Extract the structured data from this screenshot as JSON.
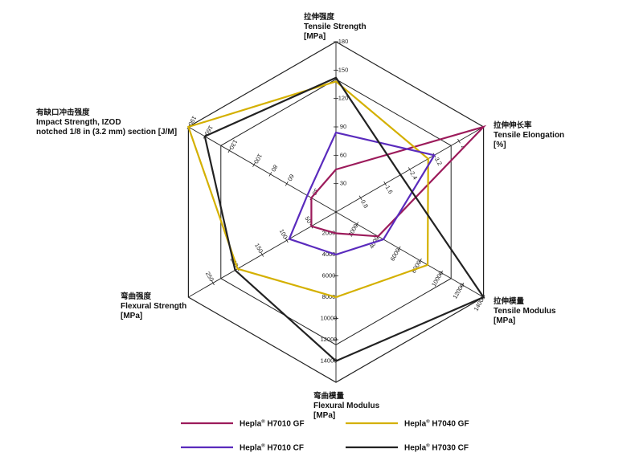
{
  "chart_data": {
    "type": "radar",
    "colors": {
      "Hepla H7010 GF": "#9c1b5b",
      "Hepla H7040 GF": "#d4b000",
      "Hepla H7010 CF": "#5a2bbd",
      "Hepla H7030 CF": "#222222"
    },
    "axes": [
      {
        "key": "tensile_strength",
        "title_cn": "拉伸强度",
        "title_en": [
          "Tensile Strength",
          "[MPa]"
        ],
        "max": 180,
        "ticks": [
          "30",
          "60",
          "90",
          "120",
          "150",
          "180"
        ],
        "tick_values": [
          30,
          60,
          90,
          120,
          150,
          180
        ]
      },
      {
        "key": "tensile_elongation",
        "title_cn": "拉伸伸长率",
        "title_en": [
          "Tensile Elongation",
          "[%]"
        ],
        "max": 4.8,
        "ticks": [
          "0.8",
          "1.6",
          "2.4",
          "3.2",
          "4"
        ],
        "tick_values": [
          0.8,
          1.6,
          2.4,
          3.2,
          4.0
        ]
      },
      {
        "key": "tensile_modulus",
        "title_cn": "拉伸模量",
        "title_en": [
          "Tensile Modulus",
          "[MPa]"
        ],
        "max": 14000,
        "ticks": [
          "2000",
          "4000",
          "6000",
          "8000",
          "10000",
          "12000",
          "14000"
        ],
        "tick_values": [
          2000,
          4000,
          6000,
          8000,
          10000,
          12000,
          14000
        ]
      },
      {
        "key": "flexural_modulus",
        "title_cn": "弯曲模量",
        "title_en": [
          "Flexural Modulus",
          "[MPa]"
        ],
        "max": 16000,
        "ticks": [
          "2000",
          "4000",
          "6000",
          "8000",
          "10000",
          "12000",
          "14000"
        ],
        "tick_values": [
          2000,
          4000,
          6000,
          8000,
          10000,
          12000,
          14000
        ]
      },
      {
        "key": "flexural_strength",
        "title_cn": "弯曲强度",
        "title_en": [
          "Flexural Strength",
          "[MPa]"
        ],
        "max": 300,
        "ticks": [
          "50",
          "100",
          "150",
          "200",
          "250"
        ],
        "tick_values": [
          50,
          100,
          150,
          200,
          250
        ]
      },
      {
        "key": "impact_strength",
        "title_cn": "有缺口冲击强度",
        "title_en": [
          "Impact Strength, IZOD",
          "notched 1/8 in (3.2 mm) section [J/M]"
        ],
        "max": 180,
        "ticks": [
          "30",
          "60",
          "80",
          "100",
          "130",
          "160",
          "190"
        ],
        "tick_values": [
          30,
          60,
          80,
          100,
          130,
          160,
          190
        ]
      }
    ],
    "series": [
      {
        "name": "Hepla® H7010 GF",
        "values": [
          45,
          4.8,
          4000,
          2000,
          50,
          30
        ]
      },
      {
        "name": "Hepla® H7040 GF",
        "values": [
          138,
          3.0,
          8700,
          8000,
          200,
          190
        ]
      },
      {
        "name": "Hepla® H7010 CF",
        "values": [
          84,
          3.2,
          4500,
          4000,
          95,
          35
        ]
      },
      {
        "name": "Hepla® H7030 CF",
        "values": [
          142,
          2.1,
          14000,
          14000,
          205,
          160
        ]
      }
    ],
    "legend": [
      {
        "label": "Hepla",
        "suffix": " H7010 GF",
        "series": 0
      },
      {
        "label": "Hepla",
        "suffix": " H7040 GF",
        "series": 1
      },
      {
        "label": "Hepla",
        "suffix": " H7010 CF",
        "series": 2
      },
      {
        "label": "Hepla",
        "suffix": " H7030 CF",
        "series": 3
      }
    ],
    "legend_sup": "®",
    "legend_placement": "bottom",
    "grid": true
  }
}
